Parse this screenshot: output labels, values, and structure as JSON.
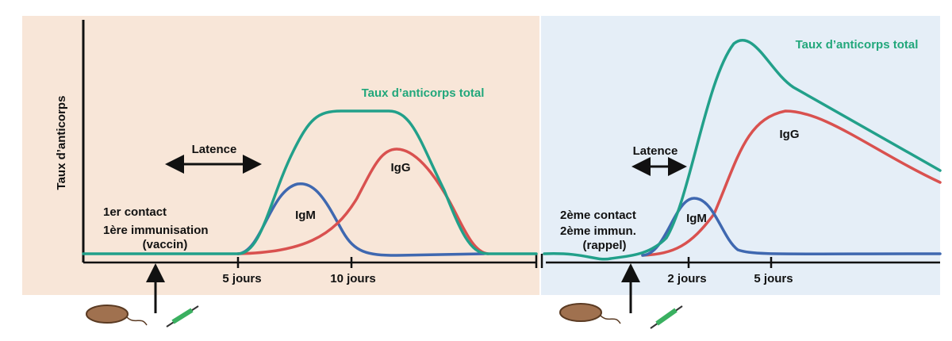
{
  "y_axis_label": "Taux d’anticorps",
  "panels": [
    {
      "latency_label": "Latence",
      "total_label": "Taux d’anticorps total",
      "igg_label": "IgG",
      "igm_label": "IgM",
      "contact_lines": [
        "1er contact",
        "1ère immunisation",
        "(vaccin)"
      ],
      "ticks": [
        "5 jours",
        "10 jours"
      ]
    },
    {
      "latency_label": "Latence",
      "total_label": "Taux d’anticorps total",
      "igg_label": "IgG",
      "igm_label": "IgM",
      "contact_lines": [
        "2ème contact",
        "2ème immun.",
        "(rappel)"
      ],
      "ticks": [
        "2 jours",
        "5 jours"
      ]
    }
  ]
}
